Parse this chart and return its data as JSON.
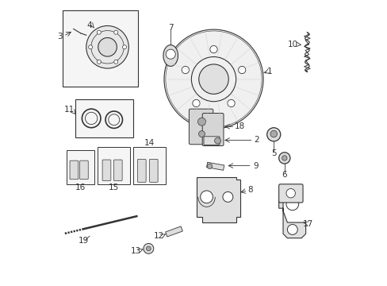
{
  "bg_color": "#ffffff",
  "fig_width": 4.89,
  "fig_height": 3.6,
  "dpi": 100,
  "gray": "#333333",
  "light_gray": "#aaaaaa",
  "fill_gray": "#dddddd",
  "box_fill": "#f5f5f5"
}
